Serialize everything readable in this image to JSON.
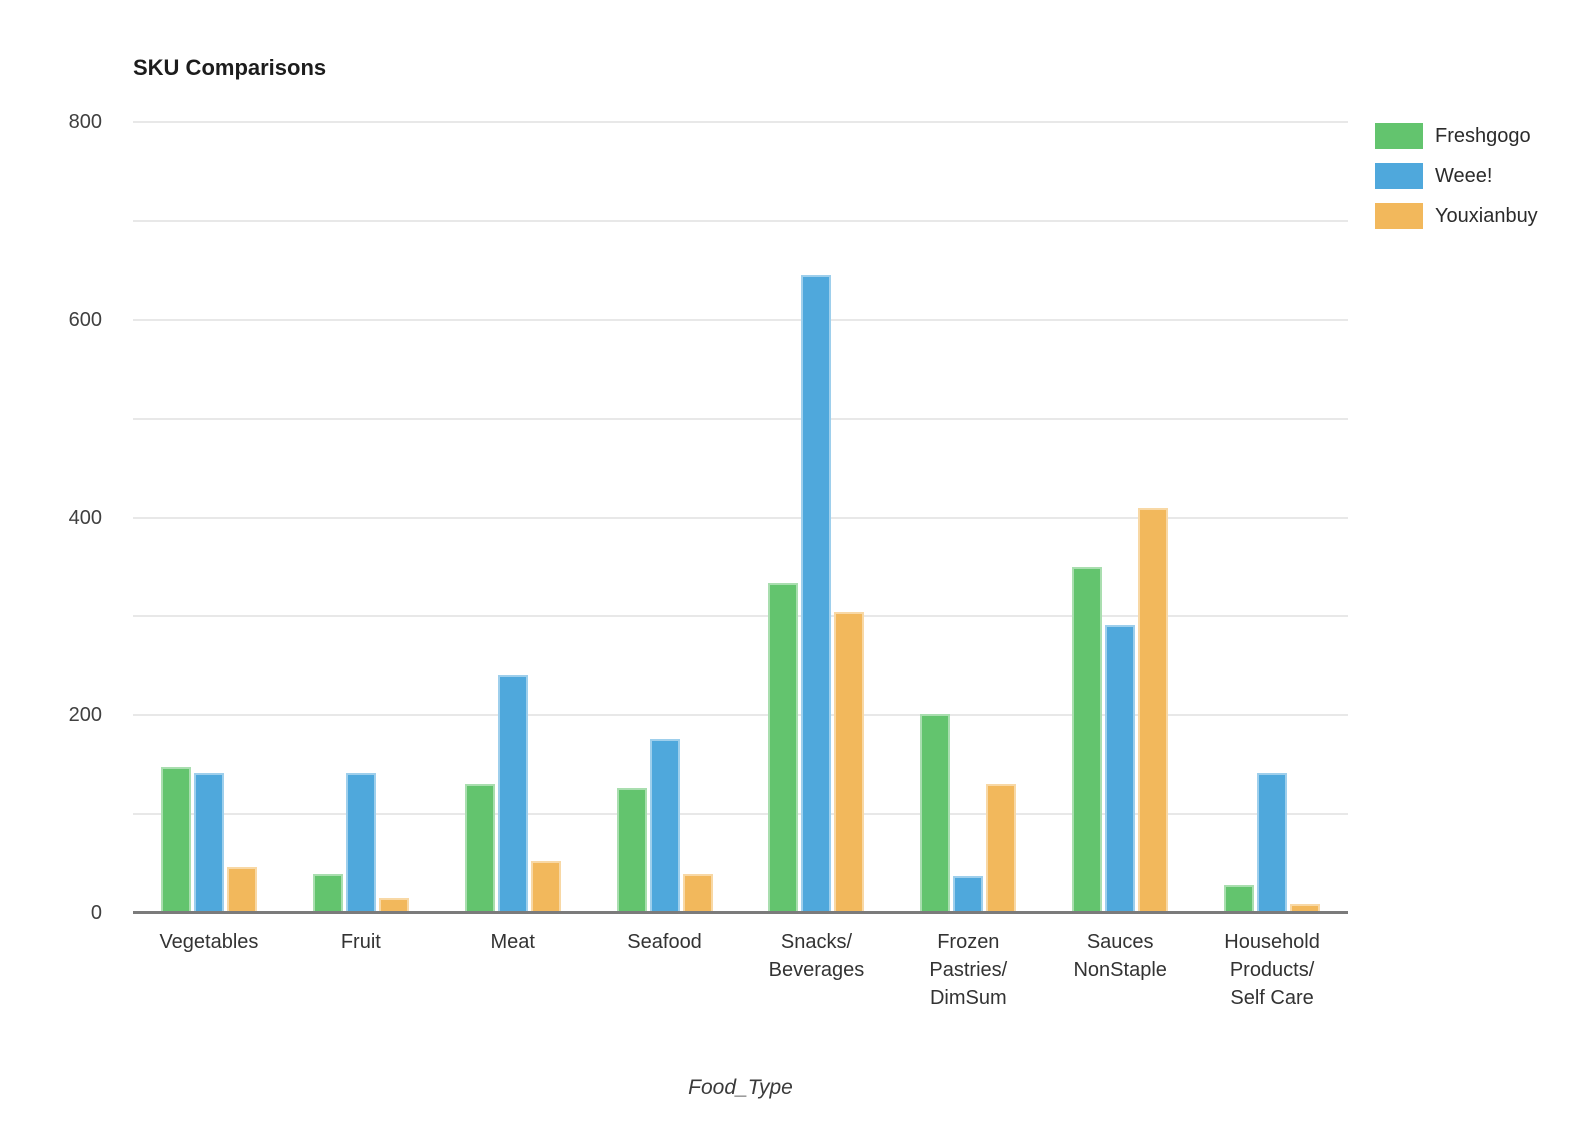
{
  "chart_data": {
    "type": "bar",
    "title": "SKU Comparisons",
    "xlabel": "Food_Type",
    "ylabel": "",
    "ylim": [
      0,
      800
    ],
    "yticks": [
      0,
      200,
      400,
      600,
      800
    ],
    "gridline_step": 100,
    "grid": true,
    "legend_position": "top-right",
    "categories": [
      "Vegetables",
      "Fruit",
      "Meat",
      "Seafood",
      "Snacks/Beverages",
      "Frozen Pastries/DimSum",
      "Sauces NonStaple",
      "Household Products/Self Care"
    ],
    "category_labels": [
      "Vegetables",
      "Fruit",
      "Meat",
      "Seafood",
      "Snacks/\nBeverages",
      "Frozen\nPastries/\nDimSum",
      "Sauces\nNonStaple",
      "Household\nProducts/\nSelf Care"
    ],
    "series": [
      {
        "name": "Freshgogo",
        "color": "#63C46E",
        "values": [
          148,
          39,
          130,
          126,
          334,
          201,
          350,
          28
        ]
      },
      {
        "name": "Weee!",
        "color": "#4FA8DC",
        "values": [
          142,
          142,
          241,
          176,
          645,
          37,
          291,
          142
        ]
      },
      {
        "name": "Youxianbuy",
        "color": "#F2B85C",
        "values": [
          47,
          15,
          53,
          39,
          304,
          130,
          410,
          9
        ]
      }
    ],
    "colors": {
      "gridline": "#e8e8e8",
      "axis_line": "#7b7b7b",
      "title_text": "#1c1c1c",
      "tick_text": "#404040"
    }
  }
}
